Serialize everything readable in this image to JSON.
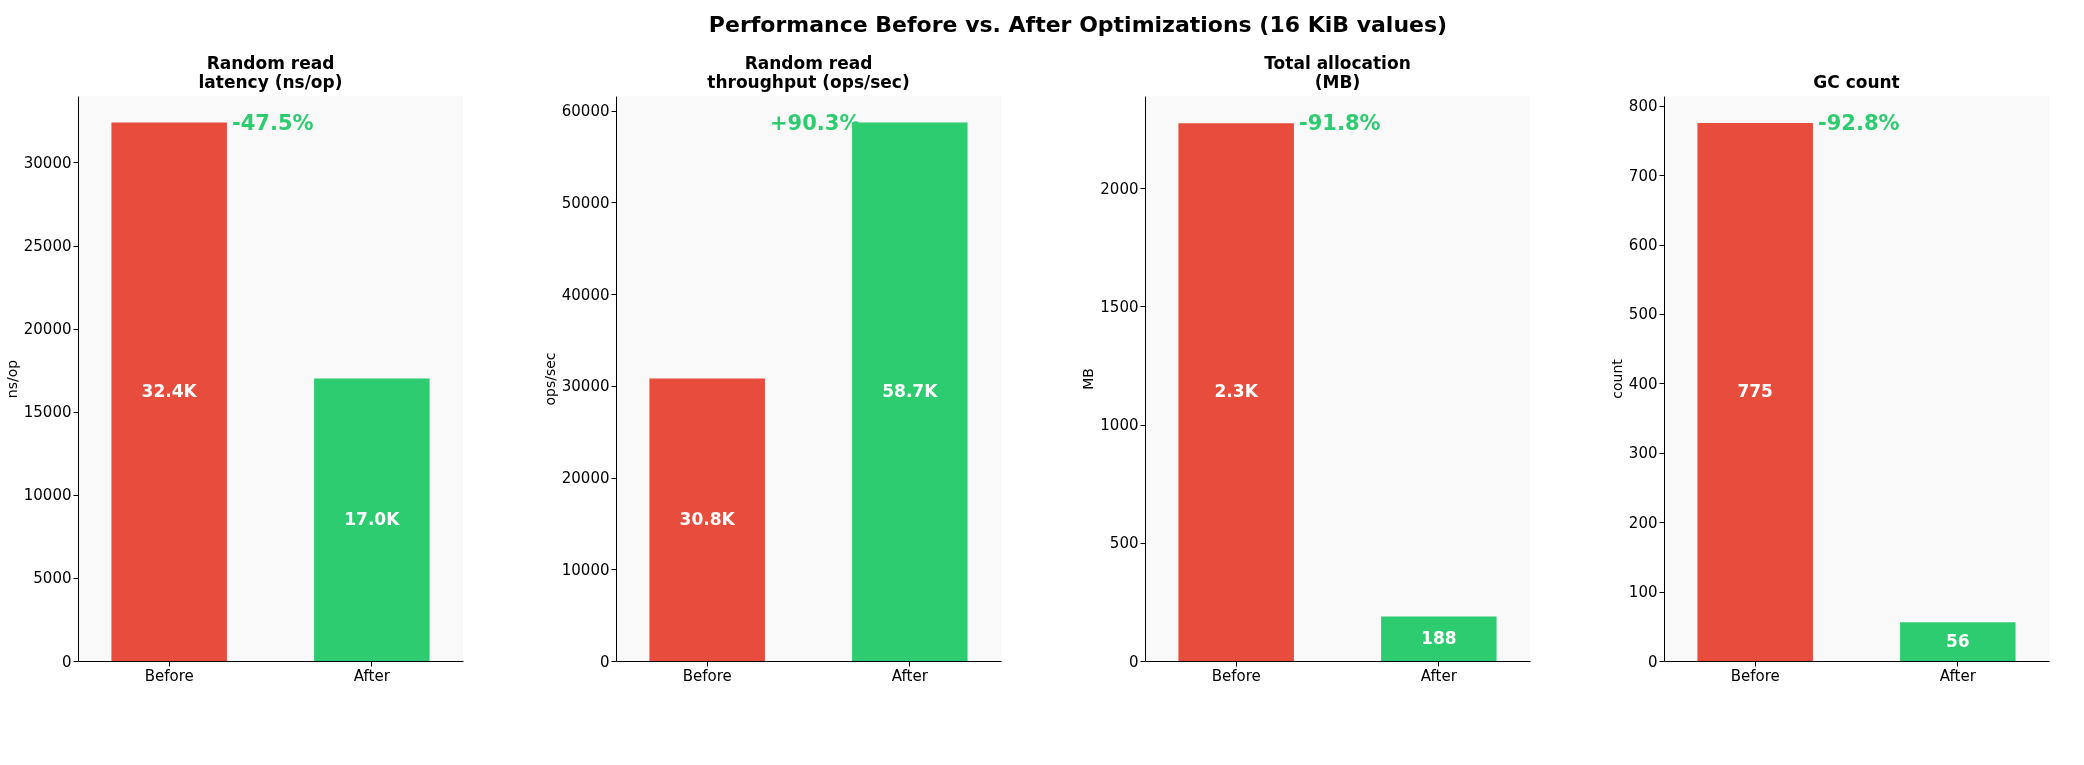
{
  "chart_data": [
    {
      "type": "other",
      "title": "Performance Before vs. After Optimizations  (16 KiB values)"
    },
    {
      "type": "bar",
      "title": "Random read\nlatency (ns/op)",
      "ylabel": "ns/op",
      "categories": [
        "Before",
        "After"
      ],
      "values": [
        32400,
        17000
      ],
      "colors": [
        "#e74c3c",
        "#2ecc71"
      ],
      "value_labels": [
        "32.4K",
        "17.0K"
      ],
      "annotations": [
        "-47.5%"
      ],
      "ylim": [
        0,
        34000
      ],
      "yticks": [
        0,
        5000,
        10000,
        15000,
        20000,
        25000,
        30000
      ],
      "grid": false,
      "legend": false
    },
    {
      "type": "bar",
      "title": "Random read\nthroughput (ops/sec)",
      "ylabel": "ops/sec",
      "categories": [
        "Before",
        "After"
      ],
      "values": [
        30800,
        58700
      ],
      "colors": [
        "#e74c3c",
        "#2ecc71"
      ],
      "value_labels": [
        "30.8K",
        "58.7K"
      ],
      "annotations": [
        "+90.3%"
      ],
      "ylim": [
        0,
        61600
      ],
      "yticks": [
        0,
        10000,
        20000,
        30000,
        40000,
        50000,
        60000
      ],
      "grid": false,
      "legend": false
    },
    {
      "type": "bar",
      "title": "Total allocation\n(MB)",
      "ylabel": "MB",
      "categories": [
        "Before",
        "After"
      ],
      "values": [
        2275,
        188
      ],
      "colors": [
        "#e74c3c",
        "#2ecc71"
      ],
      "value_labels": [
        "2.3K",
        "188"
      ],
      "annotations": [
        "-91.8%"
      ],
      "ylim": [
        0,
        2390
      ],
      "yticks": [
        0,
        500,
        1000,
        1500,
        2000
      ],
      "grid": false,
      "legend": false
    },
    {
      "type": "bar",
      "title": "GC count",
      "ylabel": "count",
      "categories": [
        "Before",
        "After"
      ],
      "values": [
        775,
        56
      ],
      "colors": [
        "#e74c3c",
        "#2ecc71"
      ],
      "value_labels": [
        "775",
        "56"
      ],
      "annotations": [
        "-92.8%"
      ],
      "ylim": [
        0,
        814
      ],
      "yticks": [
        0,
        100,
        200,
        300,
        400,
        500,
        600,
        700,
        800
      ],
      "grid": false,
      "legend": false
    }
  ]
}
